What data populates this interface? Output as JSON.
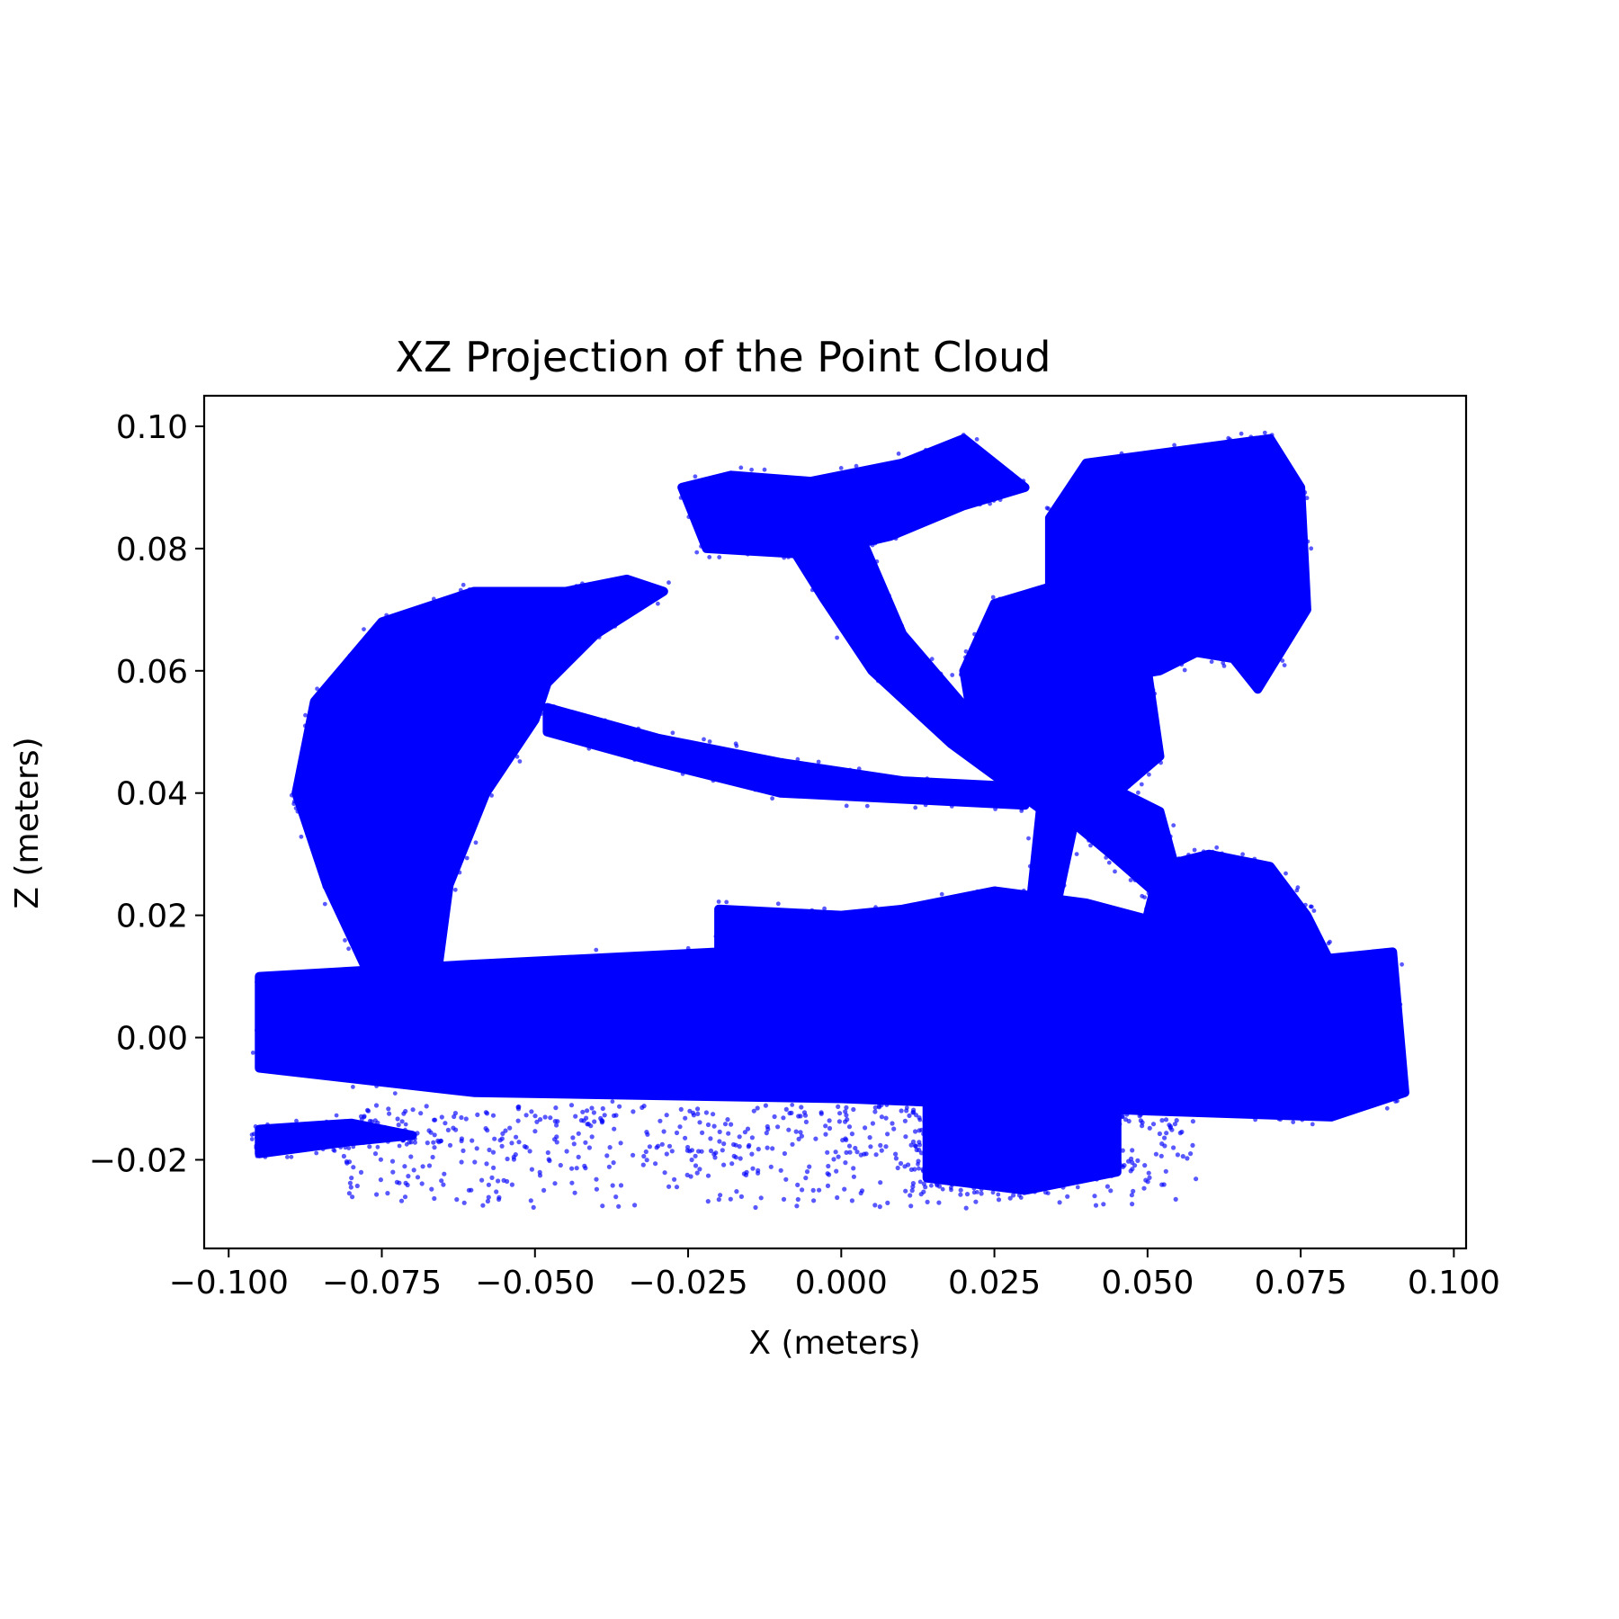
{
  "chart_data": {
    "type": "scatter",
    "title": "XZ Projection of the Point Cloud",
    "xlabel": "X (meters)",
    "ylabel": "Z (meters)",
    "xlim": [
      -0.104,
      0.102
    ],
    "ylim": [
      -0.0345,
      0.105
    ],
    "xticks": [
      -0.1,
      -0.075,
      -0.05,
      -0.025,
      0.0,
      0.025,
      0.05,
      0.075,
      0.1
    ],
    "xtick_labels": [
      "−0.100",
      "−0.075",
      "−0.050",
      "−0.025",
      "0.000",
      "0.025",
      "0.050",
      "0.075",
      "0.100"
    ],
    "yticks": [
      -0.02,
      0.0,
      0.02,
      0.04,
      0.06,
      0.08,
      0.1
    ],
    "ytick_labels": [
      "−0.02",
      "0.00",
      "0.02",
      "0.04",
      "0.06",
      "0.08",
      "0.10"
    ],
    "grid": false,
    "marker_color": "#0000ff",
    "regions": [
      {
        "name": "base-slab",
        "points": [
          [
            -0.095,
            0.01
          ],
          [
            -0.06,
            0.012
          ],
          [
            -0.02,
            0.014
          ],
          [
            0.03,
            0.015
          ],
          [
            0.07,
            0.012
          ],
          [
            0.09,
            0.014
          ],
          [
            0.092,
            -0.009
          ],
          [
            0.08,
            -0.013
          ],
          [
            0.05,
            -0.012
          ],
          [
            0.0,
            -0.01
          ],
          [
            -0.06,
            -0.009
          ],
          [
            -0.095,
            -0.005
          ]
        ]
      },
      {
        "name": "center-hump",
        "points": [
          [
            -0.02,
            0.015
          ],
          [
            -0.02,
            0.021
          ],
          [
            0.0,
            0.02
          ],
          [
            0.01,
            0.021
          ],
          [
            0.025,
            0.024
          ],
          [
            0.04,
            0.022
          ],
          [
            0.055,
            0.018
          ],
          [
            0.07,
            0.016
          ],
          [
            0.07,
            0.01
          ],
          [
            -0.02,
            0.01
          ]
        ]
      },
      {
        "name": "right-hump",
        "points": [
          [
            0.05,
            0.02
          ],
          [
            0.052,
            0.028
          ],
          [
            0.06,
            0.03
          ],
          [
            0.07,
            0.028
          ],
          [
            0.076,
            0.02
          ],
          [
            0.08,
            0.012
          ],
          [
            0.05,
            0.012
          ]
        ]
      },
      {
        "name": "left-crescent",
        "points": [
          [
            -0.077,
            0.01
          ],
          [
            -0.084,
            0.025
          ],
          [
            -0.089,
            0.04
          ],
          [
            -0.086,
            0.055
          ],
          [
            -0.075,
            0.068
          ],
          [
            -0.06,
            0.073
          ],
          [
            -0.045,
            0.073
          ],
          [
            -0.035,
            0.075
          ],
          [
            -0.029,
            0.073
          ],
          [
            -0.04,
            0.066
          ],
          [
            -0.048,
            0.058
          ],
          [
            -0.05,
            0.052
          ],
          [
            -0.058,
            0.04
          ],
          [
            -0.064,
            0.025
          ],
          [
            -0.066,
            0.01
          ]
        ]
      },
      {
        "name": "left-arm",
        "points": [
          [
            -0.048,
            0.054
          ],
          [
            -0.03,
            0.049
          ],
          [
            -0.01,
            0.045
          ],
          [
            0.01,
            0.042
          ],
          [
            0.03,
            0.041
          ],
          [
            0.03,
            0.038
          ],
          [
            0.01,
            0.039
          ],
          [
            -0.01,
            0.04
          ],
          [
            -0.03,
            0.045
          ],
          [
            -0.048,
            0.05
          ]
        ]
      },
      {
        "name": "top-bar",
        "points": [
          [
            -0.026,
            0.09
          ],
          [
            -0.018,
            0.092
          ],
          [
            -0.005,
            0.091
          ],
          [
            0.01,
            0.094
          ],
          [
            0.02,
            0.098
          ],
          [
            0.03,
            0.09
          ],
          [
            0.02,
            0.087
          ],
          [
            0.008,
            0.082
          ],
          [
            -0.005,
            0.079
          ],
          [
            -0.022,
            0.08
          ]
        ]
      },
      {
        "name": "top-stem",
        "points": [
          [
            -0.008,
            0.08
          ],
          [
            0.004,
            0.08
          ],
          [
            0.01,
            0.066
          ],
          [
            0.022,
            0.052
          ],
          [
            0.035,
            0.042
          ],
          [
            0.033,
            0.037
          ],
          [
            0.018,
            0.048
          ],
          [
            0.005,
            0.06
          ],
          [
            -0.003,
            0.072
          ]
        ]
      },
      {
        "name": "right-head",
        "points": [
          [
            0.034,
            0.085
          ],
          [
            0.04,
            0.094
          ],
          [
            0.055,
            0.096
          ],
          [
            0.07,
            0.098
          ],
          [
            0.075,
            0.09
          ],
          [
            0.076,
            0.07
          ],
          [
            0.068,
            0.057
          ],
          [
            0.064,
            0.062
          ],
          [
            0.058,
            0.063
          ],
          [
            0.052,
            0.06
          ],
          [
            0.04,
            0.058
          ],
          [
            0.034,
            0.07
          ]
        ]
      },
      {
        "name": "right-neck-ball",
        "points": [
          [
            0.02,
            0.06
          ],
          [
            0.025,
            0.071
          ],
          [
            0.035,
            0.074
          ],
          [
            0.045,
            0.071
          ],
          [
            0.05,
            0.06
          ],
          [
            0.052,
            0.046
          ],
          [
            0.045,
            0.04
          ],
          [
            0.032,
            0.04
          ],
          [
            0.022,
            0.048
          ]
        ]
      },
      {
        "name": "cross-links",
        "points": [
          [
            0.033,
            0.042
          ],
          [
            0.04,
            0.043
          ],
          [
            0.052,
            0.037
          ],
          [
            0.055,
            0.026
          ],
          [
            0.052,
            0.023
          ],
          [
            0.044,
            0.03
          ],
          [
            0.038,
            0.035
          ],
          [
            0.035,
            0.021
          ],
          [
            0.031,
            0.023
          ]
        ]
      },
      {
        "name": "lower-block",
        "points": [
          [
            0.014,
            -0.01
          ],
          [
            0.014,
            -0.023
          ],
          [
            0.022,
            -0.024
          ],
          [
            0.03,
            -0.025
          ],
          [
            0.045,
            -0.022
          ],
          [
            0.045,
            -0.01
          ]
        ]
      },
      {
        "name": "lower-left-strip",
        "points": [
          [
            -0.095,
            -0.015
          ],
          [
            -0.08,
            -0.014
          ],
          [
            -0.07,
            -0.016
          ],
          [
            -0.08,
            -0.017
          ],
          [
            -0.095,
            -0.019
          ]
        ]
      }
    ],
    "scatter_spread": {
      "x": [
        -0.082,
        0.058
      ],
      "y": [
        -0.028,
        -0.011
      ]
    }
  }
}
